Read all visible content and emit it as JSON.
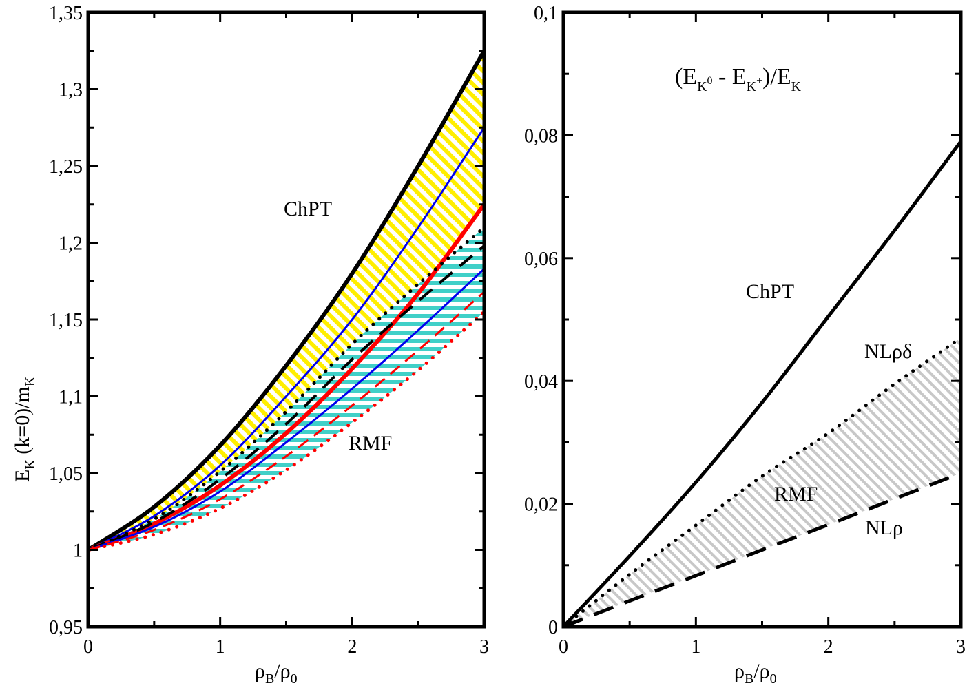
{
  "chart_data": [
    {
      "type": "line",
      "xlabel": "ρB/ρ0",
      "ylabel": "EK (k=0)/mK",
      "xlim": [
        0,
        3
      ],
      "ylim": [
        0.95,
        1.35
      ],
      "x_ticks": [
        "0",
        "1",
        "2",
        "3"
      ],
      "y_ticks": [
        "0,95",
        "1",
        "1,05",
        "1,1",
        "1,15",
        "1,2",
        "1,25",
        "1,3",
        "1,35"
      ],
      "grid": false,
      "annotations": [
        "ChPT",
        "RMF"
      ],
      "bands": [
        {
          "label": "ChPT",
          "fill": "#ffee00",
          "pattern": "diagonal",
          "between": [
            "black-solid-thick",
            "red-solid-thick"
          ]
        },
        {
          "label": "RMF",
          "fill": "#40d0c8",
          "pattern": "horizontal",
          "between": [
            "black-dotted",
            "red-dotted"
          ]
        }
      ],
      "series": [
        {
          "id": "black-solid-thick",
          "color": "#000000",
          "style": "solid",
          "width": 6,
          "x": [
            0,
            0.5,
            1,
            1.5,
            2,
            2.5,
            3
          ],
          "y": [
            1.0,
            1.028,
            1.068,
            1.12,
            1.18,
            1.25,
            1.325
          ]
        },
        {
          "id": "blue-solid-upper",
          "color": "#0000ee",
          "style": "solid",
          "width": 3,
          "x": [
            0,
            0.5,
            1,
            1.5,
            2,
            2.5,
            3
          ],
          "y": [
            1.0,
            1.022,
            1.055,
            1.1,
            1.15,
            1.21,
            1.275
          ]
        },
        {
          "id": "red-solid-thick",
          "color": "#ff0000",
          "style": "solid",
          "width": 6,
          "x": [
            0,
            0.5,
            1,
            1.5,
            2,
            2.5,
            3
          ],
          "y": [
            1.0,
            1.017,
            1.042,
            1.076,
            1.118,
            1.167,
            1.225
          ]
        },
        {
          "id": "black-dotted",
          "color": "#000000",
          "style": "dotted",
          "width": 5,
          "x": [
            0,
            0.5,
            1,
            1.5,
            2,
            2.5,
            3
          ],
          "y": [
            1.0,
            1.02,
            1.051,
            1.09,
            1.134,
            1.173,
            1.21
          ]
        },
        {
          "id": "black-dashed",
          "color": "#000000",
          "style": "dashed",
          "width": 4,
          "x": [
            0,
            0.5,
            1,
            1.5,
            2,
            2.5,
            3
          ],
          "y": [
            1.0,
            1.018,
            1.046,
            1.082,
            1.124,
            1.162,
            1.198
          ]
        },
        {
          "id": "blue-solid-lower",
          "color": "#0000ee",
          "style": "solid",
          "width": 3,
          "x": [
            0,
            0.5,
            1,
            1.5,
            2,
            2.5,
            3
          ],
          "y": [
            1.0,
            1.015,
            1.038,
            1.07,
            1.105,
            1.143,
            1.183
          ]
        },
        {
          "id": "red-dashed",
          "color": "#ff0000",
          "style": "dashed",
          "width": 3,
          "x": [
            0,
            0.5,
            1,
            1.5,
            2,
            2.5,
            3
          ],
          "y": [
            1.0,
            1.013,
            1.033,
            1.061,
            1.094,
            1.13,
            1.168
          ]
        },
        {
          "id": "red-dotted",
          "color": "#ff0000",
          "style": "dotted",
          "width": 5,
          "x": [
            0,
            0.5,
            1,
            1.5,
            2,
            2.5,
            3
          ],
          "y": [
            1.0,
            1.01,
            1.027,
            1.052,
            1.083,
            1.117,
            1.155
          ]
        }
      ]
    },
    {
      "type": "line",
      "title": "(EK0 - EK+)/EK",
      "xlabel": "ρB/ρ0",
      "ylabel": "",
      "xlim": [
        0,
        3
      ],
      "ylim": [
        0,
        0.1
      ],
      "x_ticks": [
        "0",
        "1",
        "2",
        "3"
      ],
      "y_ticks": [
        "0",
        "0,02",
        "0,04",
        "0,06",
        "0,08",
        "0,1"
      ],
      "grid": false,
      "annotations": [
        "ChPT",
        "NLρδ",
        "RMF",
        "NLρ"
      ],
      "bands": [
        {
          "label": "RMF",
          "fill": "#c8c8c8",
          "pattern": "diagonal",
          "between": [
            "NLρδ",
            "NLρ"
          ]
        }
      ],
      "series": [
        {
          "id": "ChPT",
          "color": "#000000",
          "style": "solid",
          "width": 5,
          "x": [
            0,
            0.5,
            1,
            1.5,
            2,
            2.5,
            3
          ],
          "y": [
            0,
            0.0115,
            0.0235,
            0.0365,
            0.0505,
            0.0645,
            0.079
          ]
        },
        {
          "id": "NLρδ",
          "color": "#000000",
          "style": "dotted",
          "width": 5,
          "x": [
            0,
            0.5,
            1,
            1.5,
            2,
            2.5,
            3
          ],
          "y": [
            0,
            0.0085,
            0.0165,
            0.0245,
            0.0315,
            0.0395,
            0.047
          ]
        },
        {
          "id": "NLρ",
          "color": "#000000",
          "style": "dashed",
          "width": 5,
          "x": [
            0,
            0.5,
            1,
            1.5,
            2,
            2.5,
            3
          ],
          "y": [
            0,
            0.0042,
            0.0083,
            0.0125,
            0.0166,
            0.0208,
            0.025
          ]
        }
      ]
    }
  ]
}
